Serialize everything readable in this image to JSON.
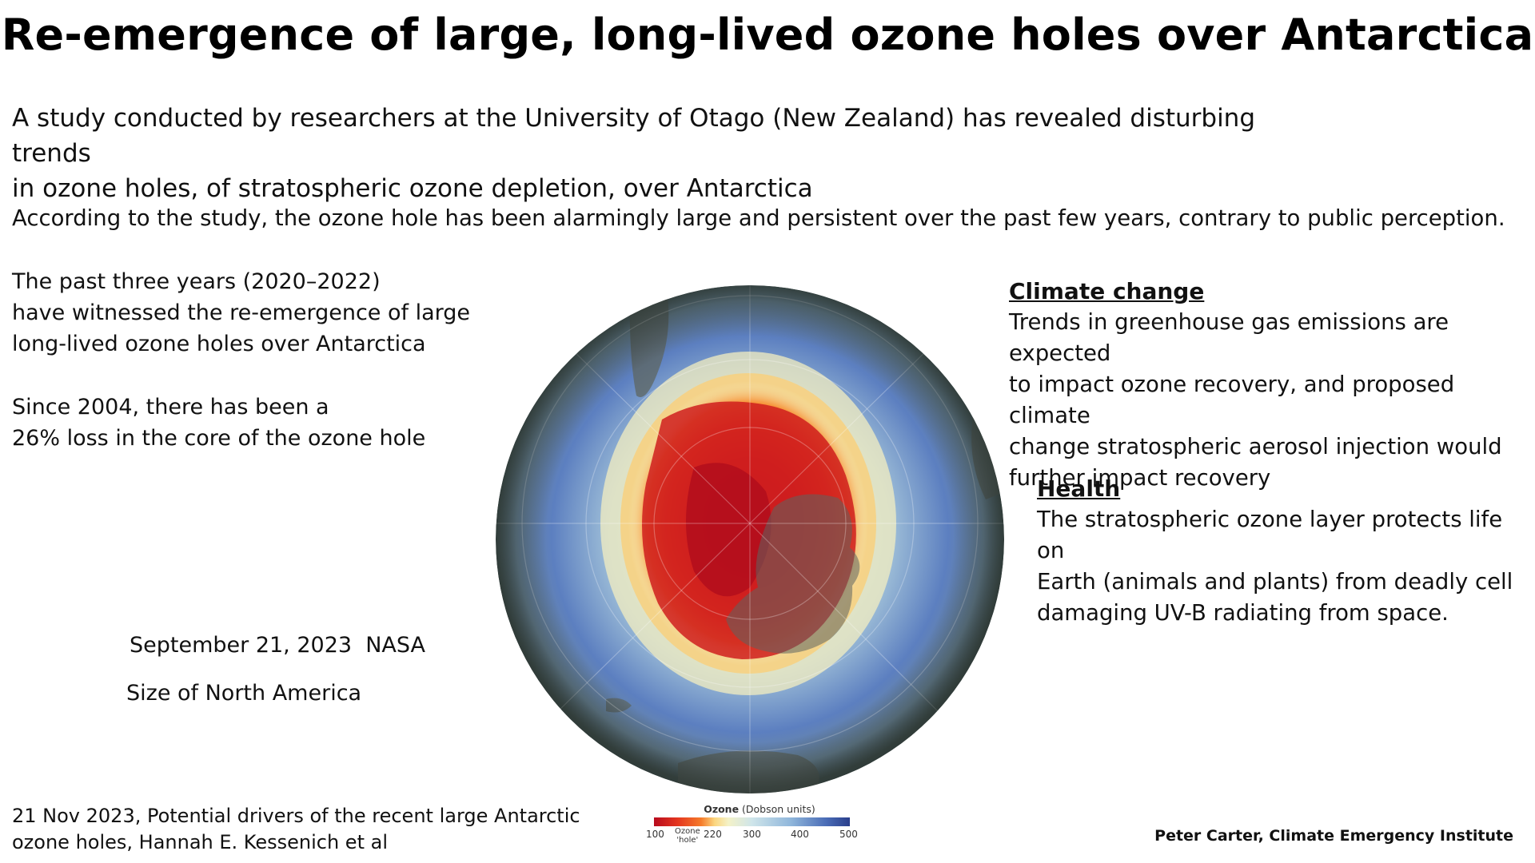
{
  "title": "Re-emergence of large, long-lived ozone holes over Antarctica",
  "intro": {
    "line1": "A study conducted by researchers at the University of Otago (New Zealand) has revealed disturbing trends",
    "line2": "in ozone holes, of stratospheric ozone depletion, over Antarctica"
  },
  "according": "According to the study, the ozone hole has been alarmingly large and persistent over the past few years, contrary to public perception.",
  "left": {
    "years_lines": [
      "The past three years (2020–2022)",
      "have witnessed the re-emergence of large",
      "long-lived ozone holes over Antarctica"
    ],
    "since_lines": [
      "Since 2004, there has been a",
      "26% loss in the core of the ozone hole"
    ],
    "date_caption": "September 21, 2023  NASA",
    "size_caption": "Size of North America"
  },
  "reference": {
    "line1": "21 Nov 2023, Potential drivers of the recent large Antarctic",
    "line2": "ozone holes, Hannah E. Kessenich et al"
  },
  "credit": "Peter Carter, Climate Emergency Institute",
  "climate": {
    "heading": "Climate change",
    "lines": [
      "Trends in greenhouse gas emissions are expected",
      "to impact ozone recovery, and proposed climate",
      "change stratospheric aerosol injection would",
      "further impact recovery"
    ]
  },
  "health": {
    "heading": "Health",
    "lines": [
      "The stratospheric ozone layer protects life on",
      "Earth (animals and plants) from deadly cell",
      "damaging UV-B radiating from space."
    ]
  },
  "colorbar": {
    "title_bold": "Ozone",
    "title_rest": " (Dobson units)",
    "ticks": [
      "100",
      "220",
      "300",
      "400",
      "500"
    ],
    "hole_label_1": "Ozone",
    "hole_label_2": "'hole'"
  },
  "colors": {
    "hole_core": "#b80b1e",
    "hole_edge": "#f57b2b",
    "high_ozone": "#2a3f8c",
    "land": "#5d6560"
  },
  "globe_icon": "antarctic-ozone-globe"
}
